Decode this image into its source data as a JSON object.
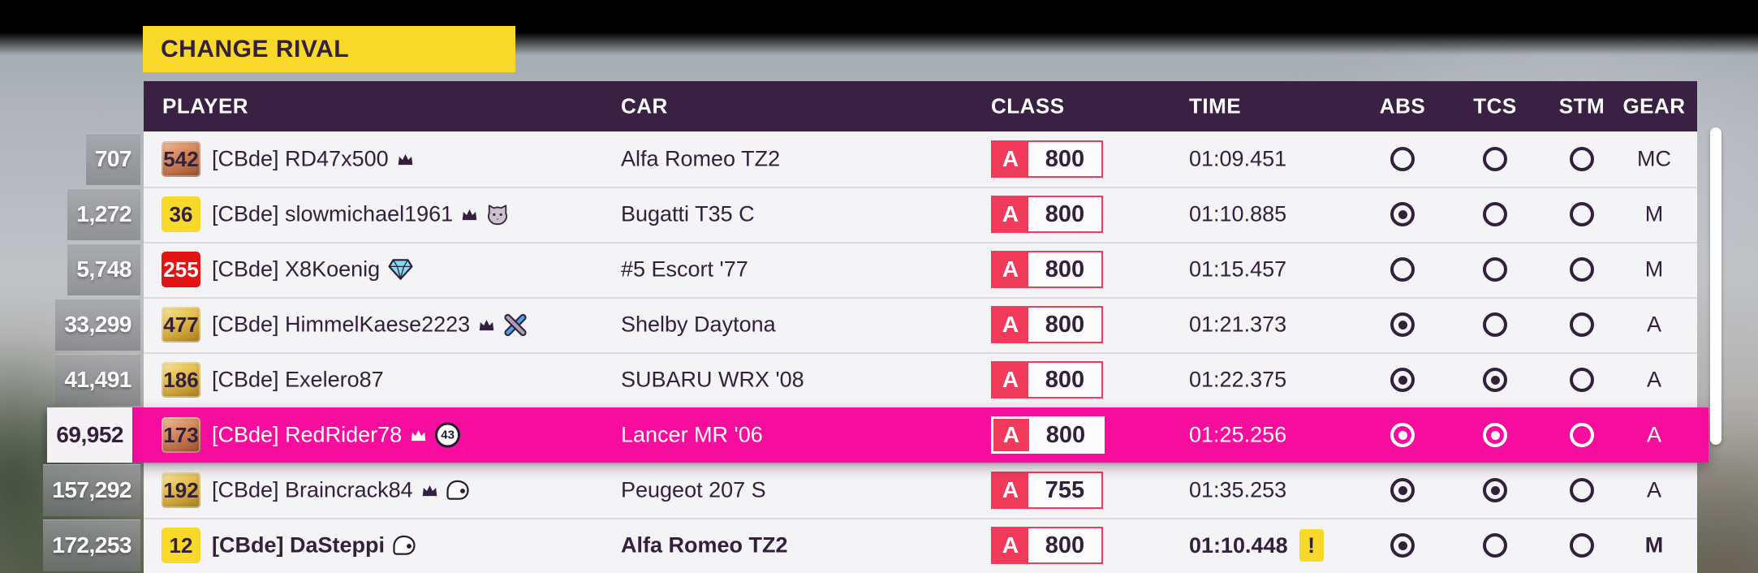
{
  "change_rival_button": {
    "label": "CHANGE RIVAL"
  },
  "colors": {
    "highlight_pink": "#f60d9e",
    "class_accent": "#f23a5b",
    "button_yellow": "#f8d929",
    "header_purple": "#3a2144",
    "row_background": "#f4f3f5",
    "text_dark": "#32203c",
    "badge_red": "#e21414",
    "badge_yellow": "#f8d929"
  },
  "table": {
    "columns": [
      {
        "key": "player",
        "label": "PLAYER"
      },
      {
        "key": "car",
        "label": "CAR"
      },
      {
        "key": "class",
        "label": "CLASS"
      },
      {
        "key": "time",
        "label": "TIME"
      },
      {
        "key": "abs",
        "label": "ABS"
      },
      {
        "key": "tcs",
        "label": "TCS"
      },
      {
        "key": "stm",
        "label": "STM"
      },
      {
        "key": "gear",
        "label": "GEAR"
      }
    ],
    "rows": [
      {
        "rank": "707",
        "badge": "542",
        "badge_color": "bronze",
        "player": "[CBde] RD47x500",
        "icons": [
          "crown"
        ],
        "car": "Alfa Romeo TZ2",
        "class_letter": "A",
        "class_value": "800",
        "time": "01:09.451",
        "time_flag": "",
        "abs": false,
        "tcs": false,
        "stm": false,
        "gear": "MC",
        "highlighted": false,
        "bold": false
      },
      {
        "rank": "1,272",
        "badge": "36",
        "badge_color": "yellow",
        "player": "[CBde] slowmichael1961",
        "icons": [
          "crown",
          "cat"
        ],
        "car": "Bugatti T35 C",
        "class_letter": "A",
        "class_value": "800",
        "time": "01:10.885",
        "time_flag": "",
        "abs": true,
        "tcs": false,
        "stm": false,
        "gear": "M",
        "highlighted": false,
        "bold": false
      },
      {
        "rank": "5,748",
        "badge": "255",
        "badge_color": "red",
        "player": "[CBde] X8Koenig",
        "icons": [
          "gem"
        ],
        "car": "#5 Escort '77",
        "class_letter": "A",
        "class_value": "800",
        "time": "01:15.457",
        "time_flag": "",
        "abs": false,
        "tcs": false,
        "stm": false,
        "gear": "M",
        "highlighted": false,
        "bold": false
      },
      {
        "rank": "33,299",
        "badge": "477",
        "badge_color": "gold",
        "player": "[CBde] HimmelKaese2223",
        "icons": [
          "crown",
          "tools"
        ],
        "car": "Shelby Daytona",
        "class_letter": "A",
        "class_value": "800",
        "time": "01:21.373",
        "time_flag": "",
        "abs": true,
        "tcs": false,
        "stm": false,
        "gear": "A",
        "highlighted": false,
        "bold": false
      },
      {
        "rank": "41,491",
        "badge": "186",
        "badge_color": "gold",
        "player": "[CBde] Exelero87",
        "icons": [],
        "car": "SUBARU WRX '08",
        "class_letter": "A",
        "class_value": "800",
        "time": "01:22.375",
        "time_flag": "",
        "abs": true,
        "tcs": true,
        "stm": false,
        "gear": "A",
        "highlighted": false,
        "bold": false
      },
      {
        "rank": "69,952",
        "badge": "173",
        "badge_color": "bronze",
        "player": "[CBde] RedRider78",
        "icons": [
          "crown",
          "level"
        ],
        "level_badge": "43",
        "car": "Lancer MR '06",
        "class_letter": "A",
        "class_value": "800",
        "time": "01:25.256",
        "time_flag": "",
        "abs": true,
        "tcs": true,
        "stm": false,
        "gear": "A",
        "highlighted": true,
        "bold": false
      },
      {
        "rank": "157,292",
        "badge": "192",
        "badge_color": "gold",
        "player": "[CBde] Braincrack84",
        "icons": [
          "crown",
          "helmet"
        ],
        "car": "Peugeot 207 S",
        "class_letter": "A",
        "class_value": "755",
        "time": "01:35.253",
        "time_flag": "",
        "abs": true,
        "tcs": true,
        "stm": false,
        "gear": "A",
        "highlighted": false,
        "bold": false
      },
      {
        "rank": "172,253",
        "badge": "12",
        "badge_color": "yellow",
        "player": "[CBde] DaSteppi",
        "icons": [
          "helmet"
        ],
        "car": "Alfa Romeo TZ2",
        "class_letter": "A",
        "class_value": "800",
        "time": "01:10.448",
        "time_flag": "!",
        "abs": true,
        "tcs": false,
        "stm": false,
        "gear": "M",
        "highlighted": false,
        "bold": true
      }
    ]
  }
}
